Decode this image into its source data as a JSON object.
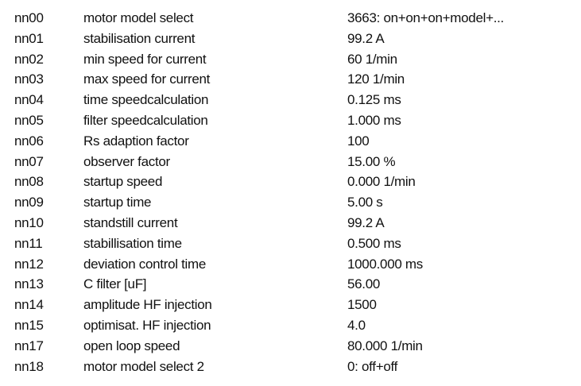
{
  "parameters": [
    {
      "code": "nn00",
      "name": "motor model select",
      "value": "3663: on+on+on+model+..."
    },
    {
      "code": "nn01",
      "name": "stabilisation current",
      "value": "99.2 A"
    },
    {
      "code": "nn02",
      "name": "min speed for current",
      "value": "60 1/min"
    },
    {
      "code": "nn03",
      "name": "max speed for current",
      "value": "120 1/min"
    },
    {
      "code": "nn04",
      "name": "time speedcalculation",
      "value": "0.125 ms"
    },
    {
      "code": "nn05",
      "name": "filter speedcalculation",
      "value": "1.000 ms"
    },
    {
      "code": "nn06",
      "name": "Rs adaption factor",
      "value": "100"
    },
    {
      "code": "nn07",
      "name": "observer factor",
      "value": "15.00 %"
    },
    {
      "code": "nn08",
      "name": "startup speed",
      "value": "0.000 1/min"
    },
    {
      "code": "nn09",
      "name": "startup time",
      "value": "5.00 s"
    },
    {
      "code": "nn10",
      "name": "standstill current",
      "value": "99.2 A"
    },
    {
      "code": "nn11",
      "name": "stabillisation time",
      "value": "0.500 ms"
    },
    {
      "code": "nn12",
      "name": "deviation control time",
      "value": "1000.000 ms"
    },
    {
      "code": "nn13",
      "name": "C filter [uF]",
      "value": "56.00"
    },
    {
      "code": "nn14",
      "name": "amplitude HF injection",
      "value": "1500"
    },
    {
      "code": "nn15",
      "name": "optimisat. HF injection",
      "value": "4.0"
    },
    {
      "code": "nn17",
      "name": "open loop speed",
      "value": "80.000 1/min"
    },
    {
      "code": "nn18",
      "name": "motor model select 2",
      "value": "0: off+off"
    }
  ]
}
